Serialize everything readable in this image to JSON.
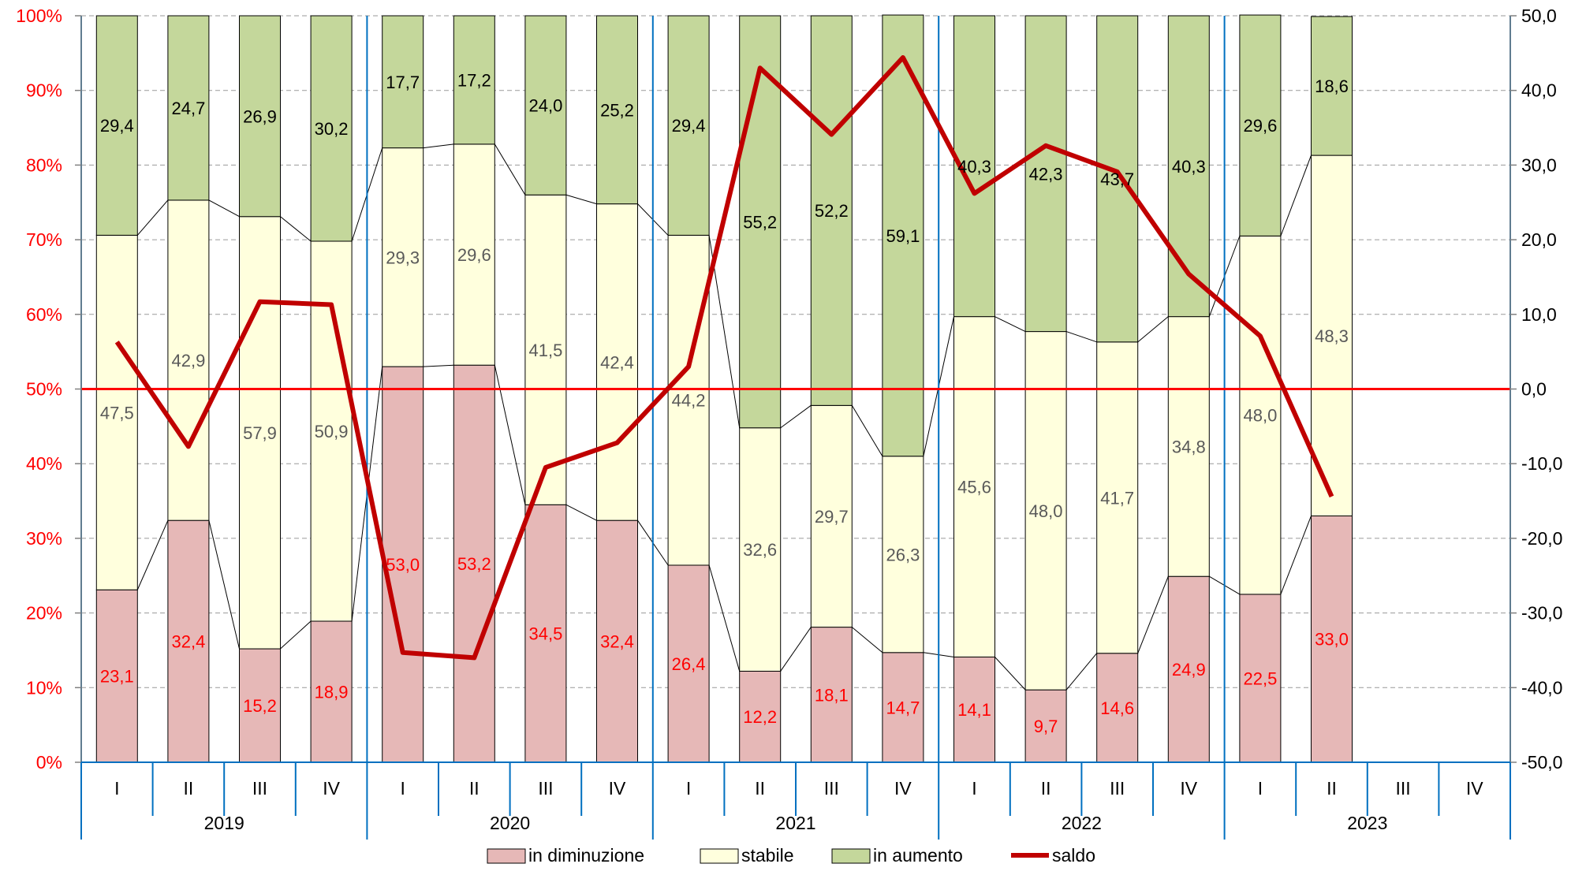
{
  "chart_data": {
    "type": "bar",
    "stacked": true,
    "secondary_type": "line",
    "years": [
      "2019",
      "2020",
      "2021",
      "2022",
      "2023"
    ],
    "quarter_labels": [
      "I",
      "II",
      "III",
      "IV"
    ],
    "categories": [
      "I",
      "II",
      "III",
      "IV",
      "I",
      "II",
      "III",
      "IV",
      "I",
      "II",
      "III",
      "IV",
      "I",
      "II",
      "III",
      "IV",
      "I",
      "II",
      "III",
      "IV"
    ],
    "series": [
      {
        "name": "in diminuzione",
        "color": "#e6b8b7",
        "label_color": "#ff0000",
        "labels": [
          "23,1",
          "32,4",
          "15,2",
          "18,9",
          "53,0",
          "53,2",
          "34,5",
          "32,4",
          "26,4",
          "12,2",
          "18,1",
          "14,7",
          "14,1",
          "9,7",
          "14,6",
          "24,9",
          "22,5",
          "33,0",
          null,
          null
        ],
        "values": [
          23.1,
          32.4,
          15.2,
          18.9,
          53.0,
          53.2,
          34.5,
          32.4,
          26.4,
          12.2,
          18.1,
          14.7,
          14.1,
          9.7,
          14.6,
          24.9,
          22.5,
          33.0,
          null,
          null
        ]
      },
      {
        "name": "stabile",
        "color": "#ffffdd",
        "label_color": "#595959",
        "labels": [
          "47,5",
          "42,9",
          "57,9",
          "50,9",
          "29,3",
          "29,6",
          "41,5",
          "42,4",
          "44,2",
          "32,6",
          "29,7",
          "26,3",
          "45,6",
          "48,0",
          "41,7",
          "34,8",
          "48,0",
          "48,3",
          null,
          null
        ],
        "values": [
          47.5,
          42.9,
          57.9,
          50.9,
          29.3,
          29.6,
          41.5,
          42.4,
          44.2,
          32.6,
          29.7,
          26.3,
          45.6,
          48.0,
          41.7,
          34.8,
          48.0,
          48.3,
          null,
          null
        ]
      },
      {
        "name": "in aumento",
        "color": "#c4d79b",
        "label_color": "#000000",
        "labels": [
          "29,4",
          "24,7",
          "26,9",
          "30,2",
          "17,7",
          "17,2",
          "24,0",
          "25,2",
          "29,4",
          "55,2",
          "52,2",
          "59,1",
          "40,3",
          "42,3",
          "43,7",
          "40,3",
          "29,6",
          "18,6",
          null,
          null
        ],
        "values": [
          29.4,
          24.7,
          26.9,
          30.2,
          17.7,
          17.2,
          24.0,
          25.2,
          29.4,
          55.2,
          52.2,
          59.1,
          40.3,
          42.3,
          43.7,
          40.3,
          29.6,
          18.6,
          null,
          null
        ]
      },
      {
        "name": "saldo",
        "type": "line",
        "axis": "right",
        "color": "#c00000",
        "values": [
          6.3,
          -7.7,
          11.7,
          11.3,
          -35.3,
          -36.0,
          -10.5,
          -7.2,
          3.0,
          43.0,
          34.1,
          44.4,
          26.2,
          32.6,
          29.1,
          15.4,
          7.1,
          -14.4,
          null,
          null
        ]
      }
    ],
    "y_left": {
      "range": [
        0,
        100
      ],
      "ticks": [
        "0%",
        "10%",
        "20%",
        "30%",
        "40%",
        "50%",
        "60%",
        "70%",
        "80%",
        "90%",
        "100%"
      ],
      "tick_color": "#ff0000"
    },
    "y_right": {
      "range": [
        -50,
        50
      ],
      "ticks": [
        "-50,0",
        "-40,0",
        "-30,0",
        "-20,0",
        "-10,0",
        "0,0",
        "10,0",
        "20,0",
        "30,0",
        "40,0",
        "50,0"
      ],
      "tick_color": "#000000"
    },
    "reference_line": {
      "y_left": 50,
      "color": "#ff0000"
    },
    "grid": true,
    "legend": {
      "position": "bottom"
    },
    "connector_lines": true
  }
}
